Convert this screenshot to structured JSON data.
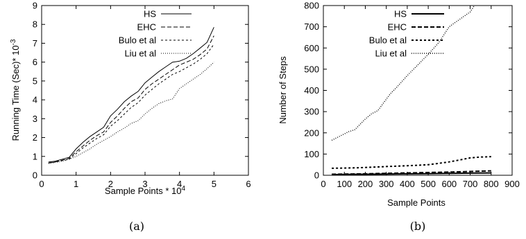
{
  "chart_data": [
    {
      "type": "line",
      "caption": "(a)",
      "xlabel": "Sample Points * 10",
      "xlabel_sup": "4",
      "ylabel": "Running Time (Sec)* 10",
      "ylabel_sup": "-3",
      "xlim": [
        0,
        6
      ],
      "ylim": [
        0,
        9
      ],
      "xticks": [
        0,
        1,
        2,
        3,
        4,
        5,
        6
      ],
      "yticks": [
        0,
        1,
        2,
        3,
        4,
        5,
        6,
        7,
        8,
        9
      ],
      "legend_position": "top-left",
      "series": [
        {
          "name": "HS",
          "dash": "",
          "x": [
            0.2,
            0.4,
            0.6,
            0.8,
            1.0,
            1.2,
            1.4,
            1.6,
            1.8,
            2.0,
            2.2,
            2.4,
            2.6,
            2.8,
            3.0,
            3.2,
            3.4,
            3.6,
            3.8,
            4.0,
            4.2,
            4.4,
            4.6,
            4.8,
            5.0
          ],
          "y": [
            0.7,
            0.75,
            0.85,
            0.95,
            1.4,
            1.75,
            2.05,
            2.3,
            2.55,
            3.15,
            3.5,
            3.9,
            4.2,
            4.45,
            4.9,
            5.2,
            5.5,
            5.75,
            6.0,
            6.05,
            6.2,
            6.45,
            6.75,
            7.05,
            7.85
          ]
        },
        {
          "name": "EHC",
          "dash": "6,3",
          "x": [
            0.2,
            0.4,
            0.6,
            0.8,
            1.0,
            1.2,
            1.4,
            1.6,
            1.8,
            2.0,
            2.2,
            2.4,
            2.6,
            2.8,
            3.0,
            3.2,
            3.4,
            3.6,
            3.8,
            4.0,
            4.2,
            4.4,
            4.6,
            4.8,
            5.0
          ],
          "y": [
            0.65,
            0.72,
            0.8,
            0.9,
            1.25,
            1.55,
            1.85,
            2.1,
            2.3,
            2.8,
            3.15,
            3.55,
            3.9,
            4.1,
            4.55,
            4.85,
            5.1,
            5.35,
            5.6,
            5.85,
            6.0,
            6.15,
            6.4,
            6.7,
            7.4
          ]
        },
        {
          "name": "Bulo et al",
          "dash": "3,3",
          "x": [
            0.2,
            0.4,
            0.6,
            0.8,
            1.0,
            1.2,
            1.4,
            1.6,
            1.8,
            2.0,
            2.2,
            2.4,
            2.6,
            2.8,
            3.0,
            3.2,
            3.4,
            3.6,
            3.8,
            4.0,
            4.2,
            4.4,
            4.6,
            4.8,
            5.0
          ],
          "y": [
            0.65,
            0.7,
            0.78,
            0.85,
            1.15,
            1.45,
            1.7,
            1.95,
            2.15,
            2.6,
            2.9,
            3.25,
            3.6,
            3.85,
            4.25,
            4.55,
            4.85,
            5.1,
            5.35,
            5.5,
            5.7,
            5.9,
            6.15,
            6.45,
            6.95
          ]
        },
        {
          "name": "Liu et al",
          "dash": "1,2",
          "x": [
            0.2,
            0.4,
            0.6,
            0.8,
            1.0,
            1.2,
            1.4,
            1.6,
            1.8,
            2.0,
            2.2,
            2.4,
            2.6,
            2.8,
            3.0,
            3.2,
            3.4,
            3.6,
            3.8,
            4.0,
            4.2,
            4.4,
            4.6,
            4.8,
            5.0
          ],
          "y": [
            0.62,
            0.68,
            0.75,
            0.85,
            1.0,
            1.2,
            1.4,
            1.65,
            1.85,
            2.05,
            2.3,
            2.5,
            2.75,
            2.9,
            3.25,
            3.55,
            3.8,
            3.95,
            4.05,
            4.6,
            4.85,
            5.1,
            5.35,
            5.65,
            6.0
          ]
        }
      ]
    },
    {
      "type": "line",
      "caption": "(b)",
      "xlabel": "Sample Points",
      "ylabel": "Number of Steps",
      "xlim": [
        0,
        900
      ],
      "ylim": [
        0,
        800
      ],
      "xticks": [
        0,
        100,
        200,
        300,
        400,
        500,
        600,
        700,
        800,
        900
      ],
      "yticks": [
        0,
        100,
        200,
        300,
        400,
        500,
        600,
        700,
        800
      ],
      "legend_position": "top-right",
      "series": [
        {
          "name": "HS",
          "dash": "",
          "width": 2,
          "x": [
            40,
            100,
            200,
            300,
            400,
            500,
            600,
            700,
            800
          ],
          "y": [
            3,
            4,
            5,
            6,
            7,
            8,
            9,
            10,
            11
          ]
        },
        {
          "name": "EHC",
          "dash": "6,3",
          "width": 2,
          "x": [
            40,
            100,
            200,
            300,
            400,
            500,
            600,
            700,
            800
          ],
          "y": [
            5,
            6,
            7,
            9,
            11,
            13,
            15,
            18,
            21
          ]
        },
        {
          "name": "Bulo et al",
          "dash": "3,3",
          "width": 2,
          "x": [
            40,
            100,
            150,
            200,
            250,
            300,
            350,
            400,
            450,
            500,
            550,
            600,
            650,
            700,
            750,
            800
          ],
          "y": [
            33,
            34,
            35,
            37,
            39,
            41,
            43,
            45,
            47,
            50,
            56,
            63,
            72,
            82,
            86,
            88
          ]
        },
        {
          "name": "Liu et al",
          "dash": "1,2",
          "width": 1.4,
          "x": [
            40,
            80,
            120,
            150,
            180,
            200,
            230,
            260,
            290,
            320,
            350,
            400,
            450,
            500,
            550,
            600,
            650,
            700,
            720
          ],
          "y": [
            165,
            185,
            205,
            215,
            245,
            265,
            290,
            305,
            345,
            385,
            415,
            470,
            520,
            570,
            625,
            700,
            735,
            770,
            800
          ]
        }
      ]
    }
  ]
}
